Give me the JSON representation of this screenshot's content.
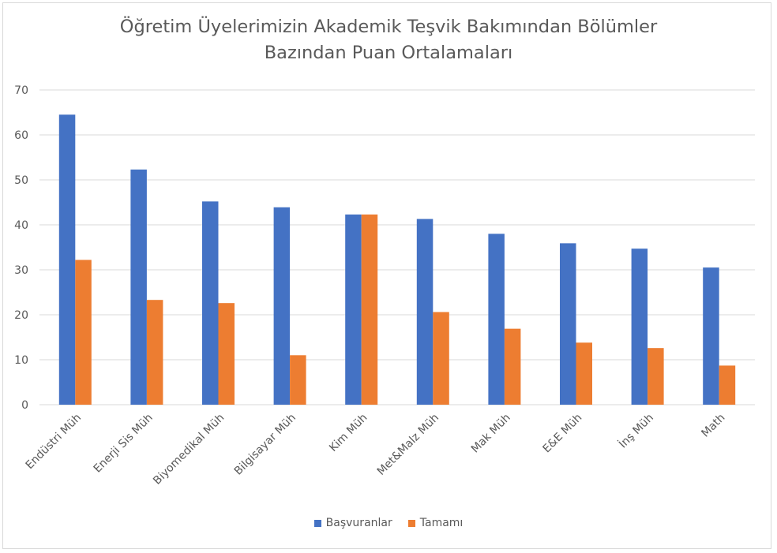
{
  "chart_data": {
    "type": "bar",
    "title_lines": [
      "Öğretim Üyelerimizin Akademik Teşvik Bakımından Bölümler",
      "Bazından Puan Ortalamaları"
    ],
    "categories": [
      "Endüstri Müh",
      "Enerji Sis Müh",
      "Biyomedikal Müh",
      "Bilgisayar Müh",
      "Kim Müh",
      "Met&Malz Müh",
      "Mak Müh",
      "E&E Müh",
      "İnş Müh",
      "Math"
    ],
    "series": [
      {
        "name": "Başvuranlar",
        "color": "#4472c4",
        "values": [
          64.5,
          52.3,
          45.2,
          43.9,
          42.3,
          41.3,
          38.0,
          35.9,
          34.7,
          30.5
        ]
      },
      {
        "name": "Tamamı",
        "color": "#ed7d31",
        "values": [
          32.2,
          23.3,
          22.6,
          11.0,
          42.3,
          20.6,
          16.9,
          13.8,
          12.6,
          8.7
        ]
      }
    ],
    "ylim": [
      0,
      70
    ],
    "yticks": [
      0,
      10,
      20,
      30,
      40,
      50,
      60,
      70
    ],
    "grid": true,
    "legend_position": "bottom"
  }
}
